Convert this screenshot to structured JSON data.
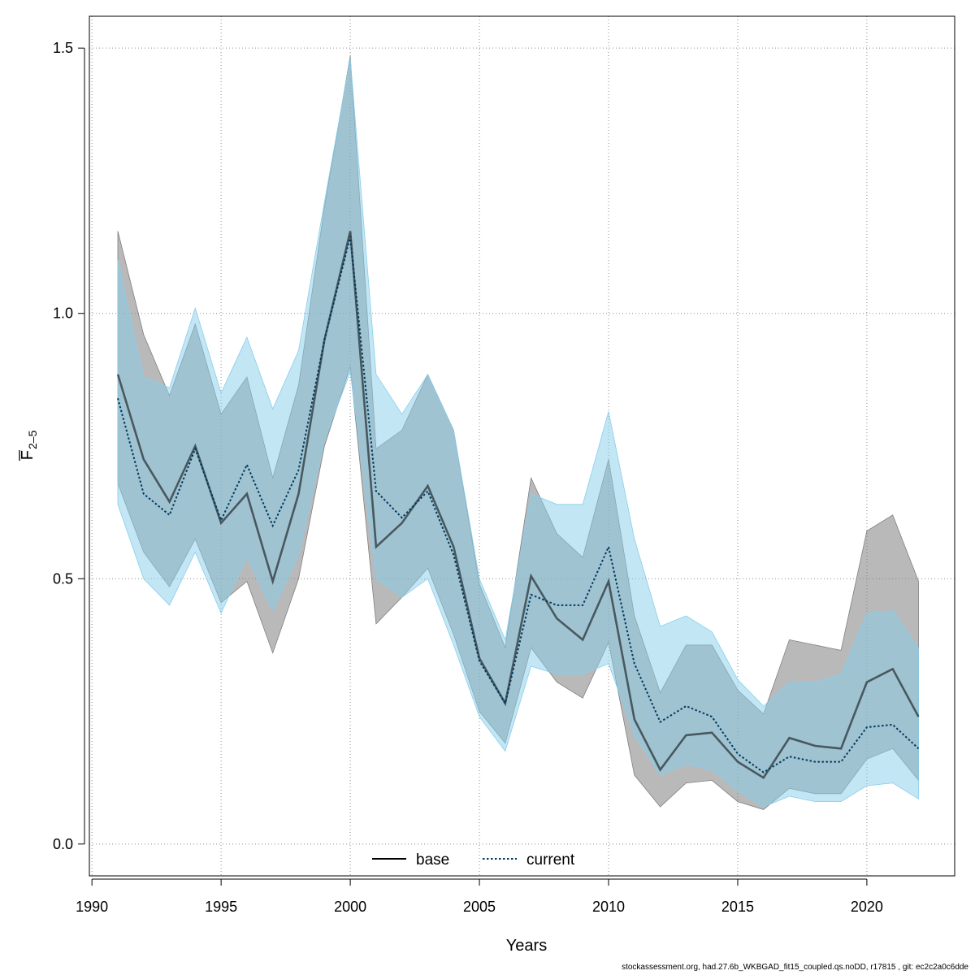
{
  "chart_data": {
    "type": "line",
    "xlabel": "Years",
    "ylabel_main": "F",
    "ylabel_sub": "2–5",
    "xlim": [
      1989.9,
      2023.4
    ],
    "ylim": [
      -0.06,
      1.56
    ],
    "x_ticks": [
      1990,
      1995,
      2000,
      2005,
      2010,
      2015,
      2020
    ],
    "y_ticks": [
      0.0,
      0.5,
      1.0,
      1.5
    ],
    "y_tick_labels": [
      "0.0",
      "0.5",
      "1.0",
      "1.5"
    ],
    "grid": true,
    "legend_position": "bottom-center",
    "x": [
      1991,
      1992,
      1993,
      1994,
      1995,
      1996,
      1997,
      1998,
      1999,
      2000,
      2001,
      2002,
      2003,
      2004,
      2005,
      2006,
      2007,
      2008,
      2009,
      2010,
      2011,
      2012,
      2013,
      2014,
      2015,
      2016,
      2017,
      2018,
      2019,
      2020,
      2021,
      2022
    ],
    "series": [
      {
        "name": "base",
        "line_style": "solid",
        "color": "#000000",
        "band_color": "#808080",
        "values": [
          0.885,
          0.725,
          0.645,
          0.75,
          0.605,
          0.66,
          0.495,
          0.66,
          0.95,
          1.155,
          0.56,
          0.605,
          0.675,
          0.56,
          0.35,
          0.265,
          0.505,
          0.425,
          0.385,
          0.495,
          0.235,
          0.14,
          0.205,
          0.21,
          0.155,
          0.125,
          0.2,
          0.185,
          0.18,
          0.305,
          0.33,
          0.24
        ],
        "lower": [
          0.68,
          0.55,
          0.485,
          0.575,
          0.455,
          0.495,
          0.36,
          0.5,
          0.75,
          0.9,
          0.415,
          0.465,
          0.52,
          0.395,
          0.25,
          0.19,
          0.37,
          0.305,
          0.275,
          0.38,
          0.13,
          0.07,
          0.115,
          0.12,
          0.08,
          0.065,
          0.105,
          0.095,
          0.095,
          0.16,
          0.18,
          0.12
        ],
        "upper": [
          1.155,
          0.96,
          0.845,
          0.98,
          0.81,
          0.88,
          0.69,
          0.865,
          1.2,
          1.485,
          0.745,
          0.78,
          0.885,
          0.78,
          0.49,
          0.37,
          0.69,
          0.585,
          0.54,
          0.725,
          0.43,
          0.285,
          0.375,
          0.375,
          0.29,
          0.245,
          0.385,
          0.375,
          0.365,
          0.59,
          0.62,
          0.495
        ]
      },
      {
        "name": "current",
        "line_style": "dotted",
        "color": "#003a5c",
        "band_color": "#87ceeb",
        "values": [
          0.84,
          0.66,
          0.62,
          0.745,
          0.61,
          0.715,
          0.6,
          0.705,
          0.95,
          1.145,
          0.665,
          0.615,
          0.665,
          0.545,
          0.345,
          0.265,
          0.47,
          0.45,
          0.45,
          0.56,
          0.34,
          0.23,
          0.26,
          0.24,
          0.17,
          0.135,
          0.165,
          0.155,
          0.155,
          0.22,
          0.225,
          0.18
        ],
        "lower": [
          0.64,
          0.5,
          0.45,
          0.55,
          0.435,
          0.54,
          0.44,
          0.545,
          0.76,
          0.89,
          0.5,
          0.465,
          0.5,
          0.375,
          0.24,
          0.175,
          0.335,
          0.32,
          0.32,
          0.34,
          0.205,
          0.13,
          0.15,
          0.14,
          0.1,
          0.07,
          0.09,
          0.08,
          0.08,
          0.11,
          0.115,
          0.085
        ],
        "upper": [
          1.1,
          0.88,
          0.86,
          1.01,
          0.85,
          0.955,
          0.82,
          0.93,
          1.21,
          1.48,
          0.885,
          0.81,
          0.885,
          0.78,
          0.5,
          0.385,
          0.66,
          0.64,
          0.64,
          0.815,
          0.575,
          0.41,
          0.43,
          0.4,
          0.31,
          0.26,
          0.305,
          0.305,
          0.32,
          0.435,
          0.44,
          0.37
        ]
      }
    ]
  },
  "footer_text": "stockassessment.org, had.27.6b_WKBGAD_fit15_coupled.qs.noDD, r17815 , git: ec2c2a0c6dde"
}
